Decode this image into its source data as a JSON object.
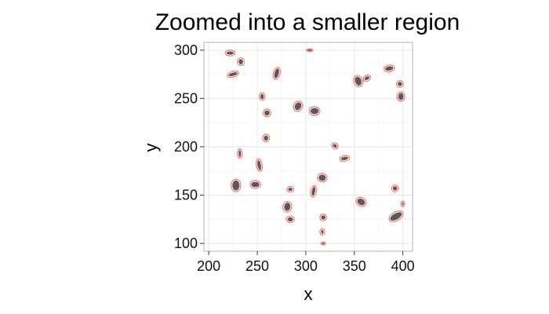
{
  "chart_data": {
    "type": "scatter",
    "title": "Zoomed into a smaller region",
    "xlabel": "x",
    "ylabel": "y",
    "xlim": [
      195,
      410
    ],
    "ylim": [
      92,
      308
    ],
    "xticks": [
      200,
      250,
      300,
      350,
      400
    ],
    "yticks": [
      100,
      150,
      200,
      250,
      300
    ],
    "grid": true,
    "colors": {
      "blob": "#595959",
      "ellipse": "#f8766d",
      "grid": "#ebebeb",
      "panel_border": "#b3b3b3"
    },
    "points": [
      {
        "x": 222,
        "y": 297,
        "w": 10,
        "h": 6,
        "angle": 0
      },
      {
        "x": 233,
        "y": 288,
        "w": 7,
        "h": 8,
        "angle": 0
      },
      {
        "x": 225,
        "y": 275,
        "w": 12,
        "h": 6,
        "angle": -15
      },
      {
        "x": 270,
        "y": 276,
        "w": 7,
        "h": 13,
        "angle": 15
      },
      {
        "x": 304,
        "y": 300,
        "w": 7,
        "h": 3,
        "angle": 0
      },
      {
        "x": 354,
        "y": 268,
        "w": 9,
        "h": 12,
        "angle": -20
      },
      {
        "x": 363,
        "y": 271,
        "w": 8,
        "h": 6,
        "angle": -30
      },
      {
        "x": 386,
        "y": 281,
        "w": 11,
        "h": 7,
        "angle": -10
      },
      {
        "x": 397,
        "y": 265,
        "w": 7,
        "h": 7,
        "angle": 0
      },
      {
        "x": 398,
        "y": 252,
        "w": 8,
        "h": 10,
        "angle": 0
      },
      {
        "x": 255,
        "y": 252,
        "w": 6,
        "h": 8,
        "angle": 0
      },
      {
        "x": 292,
        "y": 242,
        "w": 9,
        "h": 11,
        "angle": 30
      },
      {
        "x": 309,
        "y": 237,
        "w": 11,
        "h": 9,
        "angle": 0
      },
      {
        "x": 260,
        "y": 235,
        "w": 8,
        "h": 8,
        "angle": 0
      },
      {
        "x": 259,
        "y": 209,
        "w": 7,
        "h": 8,
        "angle": 0
      },
      {
        "x": 330,
        "y": 201,
        "w": 7,
        "h": 6,
        "angle": 30
      },
      {
        "x": 340,
        "y": 188,
        "w": 10,
        "h": 6,
        "angle": -10
      },
      {
        "x": 232,
        "y": 193,
        "w": 5,
        "h": 10,
        "angle": 0
      },
      {
        "x": 252,
        "y": 181,
        "w": 6,
        "h": 13,
        "angle": -10
      },
      {
        "x": 228,
        "y": 160,
        "w": 10,
        "h": 13,
        "angle": 0
      },
      {
        "x": 248,
        "y": 161,
        "w": 11,
        "h": 8,
        "angle": 0
      },
      {
        "x": 284,
        "y": 156,
        "w": 7,
        "h": 6,
        "angle": 0
      },
      {
        "x": 317,
        "y": 168,
        "w": 10,
        "h": 9,
        "angle": 0
      },
      {
        "x": 308,
        "y": 154,
        "w": 6,
        "h": 12,
        "angle": 10
      },
      {
        "x": 281,
        "y": 138,
        "w": 9,
        "h": 11,
        "angle": 10
      },
      {
        "x": 357,
        "y": 143,
        "w": 11,
        "h": 9,
        "angle": 30
      },
      {
        "x": 392,
        "y": 157,
        "w": 7,
        "h": 7,
        "angle": 0
      },
      {
        "x": 393,
        "y": 128,
        "w": 16,
        "h": 9,
        "angle": -30
      },
      {
        "x": 400,
        "y": 141,
        "w": 4,
        "h": 6,
        "angle": 0
      },
      {
        "x": 318,
        "y": 127,
        "w": 7,
        "h": 7,
        "angle": 0
      },
      {
        "x": 284,
        "y": 125,
        "w": 8,
        "h": 7,
        "angle": 0
      },
      {
        "x": 317,
        "y": 112,
        "w": 5,
        "h": 7,
        "angle": 0
      },
      {
        "x": 318,
        "y": 100,
        "w": 5,
        "h": 3,
        "angle": 0
      }
    ]
  }
}
